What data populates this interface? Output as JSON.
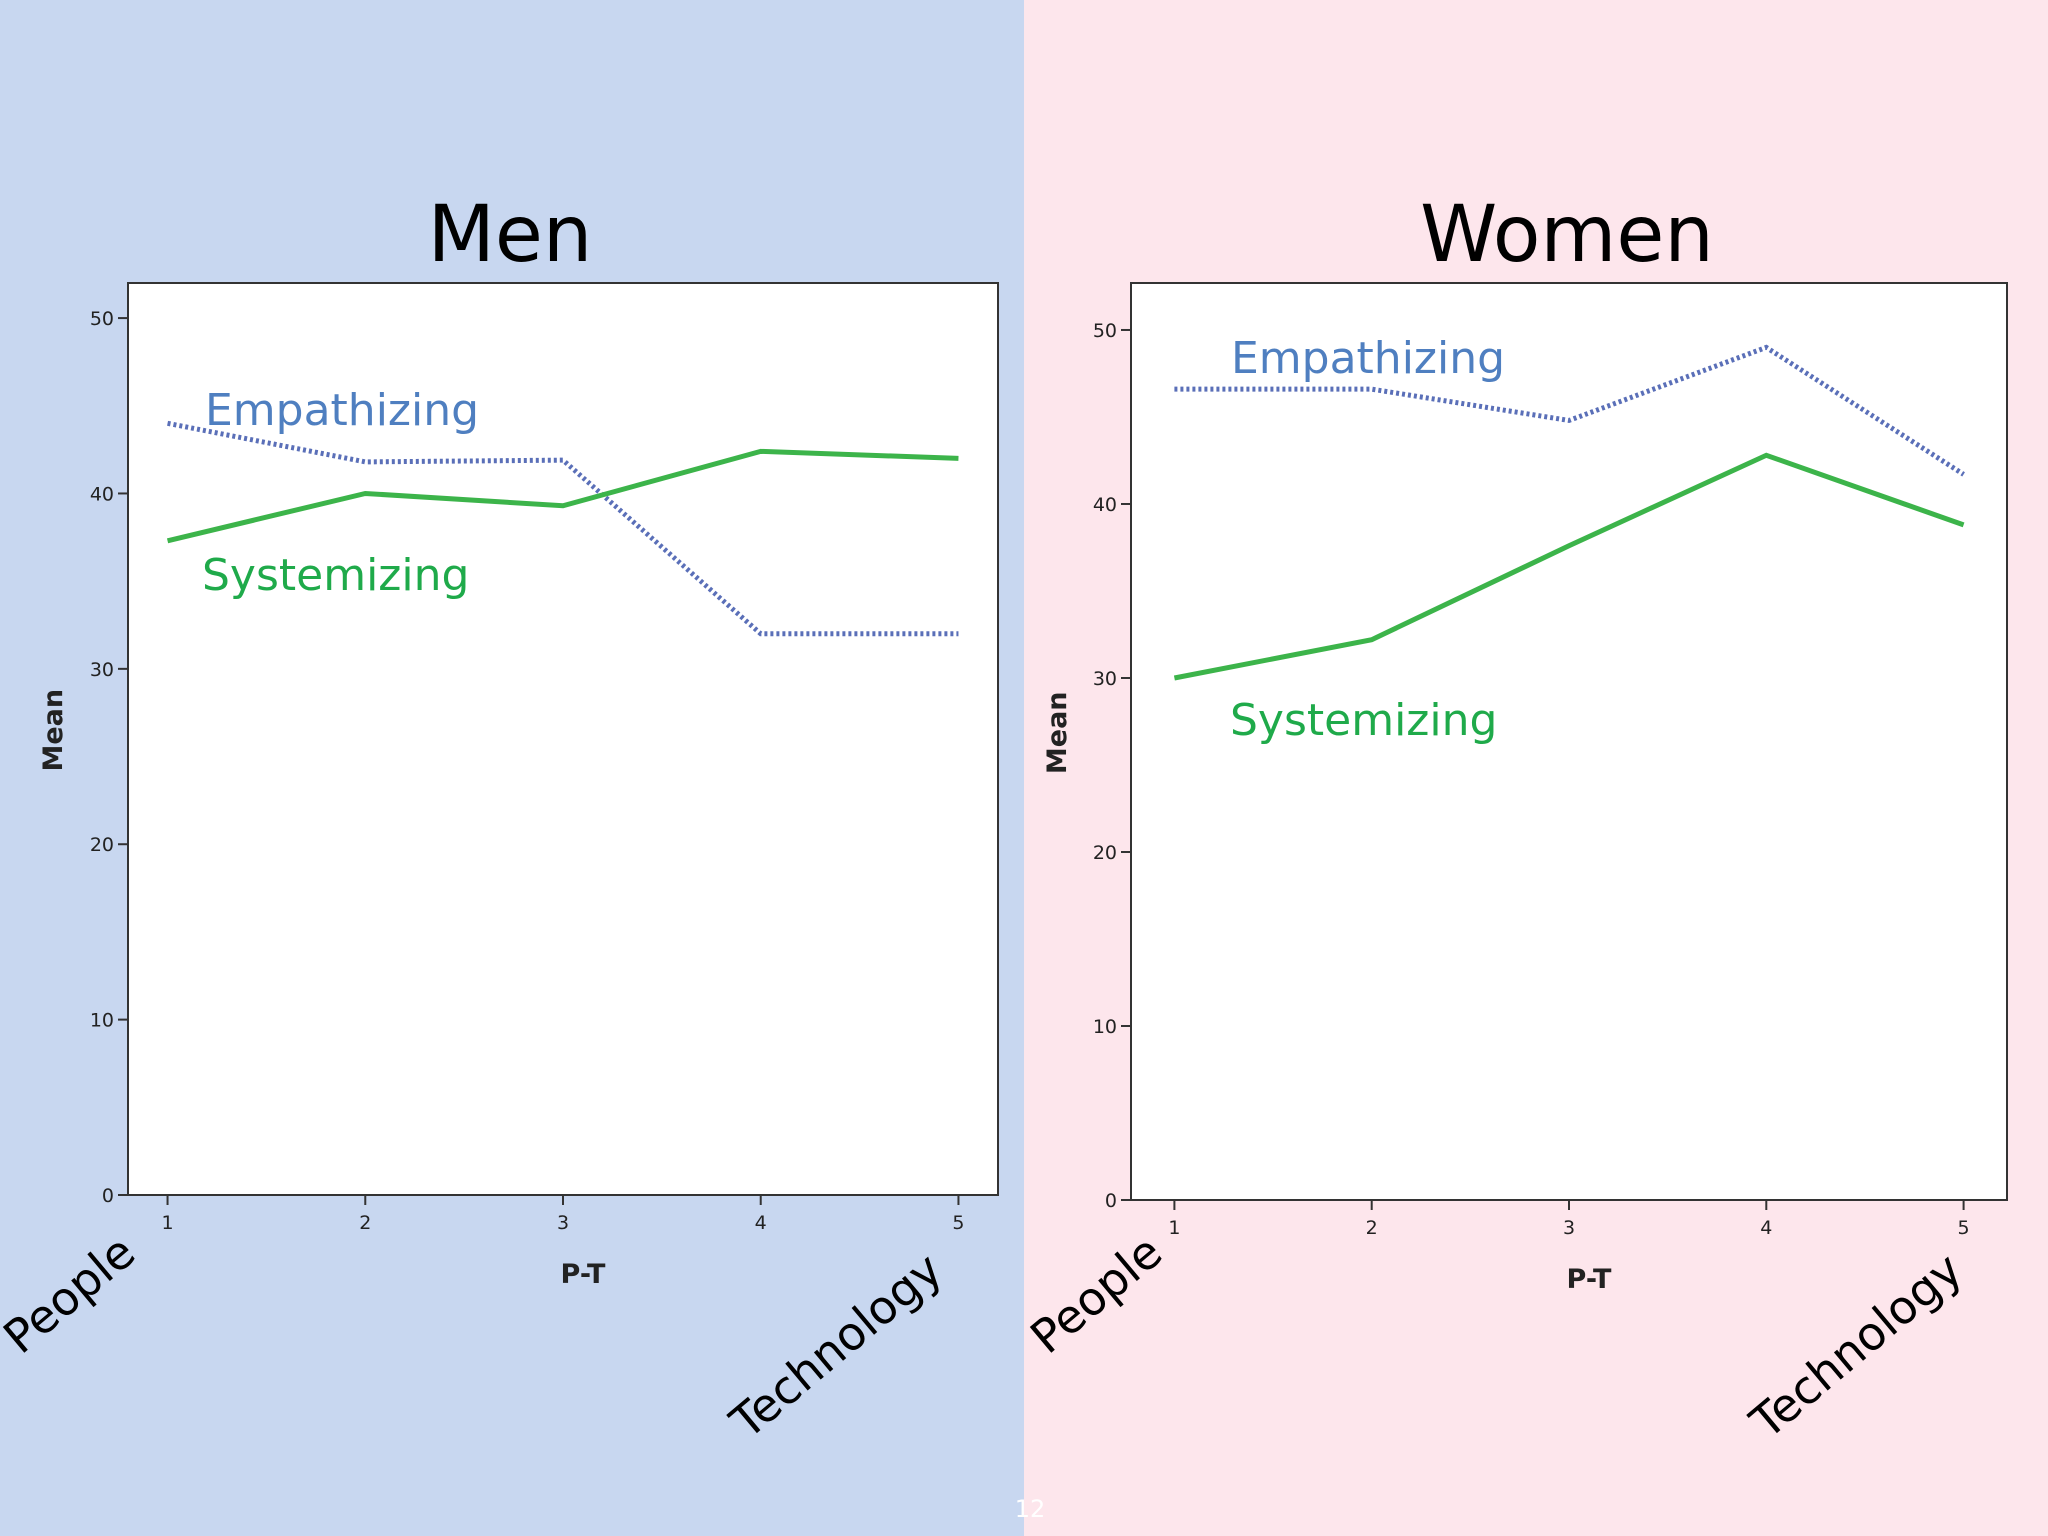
{
  "slide": {
    "page_number": "12"
  },
  "colors": {
    "men_background": "#c8d7f0",
    "women_background": "#fde6ec",
    "empathizing_line": "#5a6fb8",
    "systemizing_line": "#3cb44a",
    "empathizing_label": "#4f7fc0",
    "systemizing_label": "#1faa4a"
  },
  "chart_data": [
    {
      "type": "line",
      "title": "Men",
      "xlabel": "P-T",
      "ylabel": "Mean",
      "x": [
        1,
        2,
        3,
        4,
        5
      ],
      "x_tick_labels": [
        "1",
        "2",
        "3",
        "4",
        "5"
      ],
      "y_tick_labels": [
        "0",
        "10",
        "20",
        "30",
        "40",
        "50"
      ],
      "ylim": [
        0,
        52
      ],
      "xlim": [
        0.8,
        5.2
      ],
      "grid": false,
      "category_labels": {
        "left": "People",
        "right": "Technology"
      },
      "series": [
        {
          "name": "Empathizing",
          "style": "dotted",
          "values": [
            44.0,
            41.8,
            41.9,
            32.0,
            32.0
          ]
        },
        {
          "name": "Systemizing",
          "style": "solid",
          "values": [
            37.3,
            40.0,
            39.3,
            42.4,
            42.0
          ]
        }
      ]
    },
    {
      "type": "line",
      "title": "Women",
      "xlabel": "P-T",
      "ylabel": "Mean",
      "x": [
        1,
        2,
        3,
        4,
        5
      ],
      "x_tick_labels": [
        "1",
        "2",
        "3",
        "4",
        "5"
      ],
      "y_tick_labels": [
        "0",
        "10",
        "20",
        "30",
        "40",
        "50"
      ],
      "ylim": [
        0,
        52.7
      ],
      "xlim": [
        0.78,
        5.22
      ],
      "grid": false,
      "category_labels": {
        "left": "People",
        "right": "Technology"
      },
      "series": [
        {
          "name": "Empathizing",
          "style": "dotted",
          "values": [
            46.6,
            46.6,
            44.8,
            49.0,
            41.7
          ]
        },
        {
          "name": "Systemizing",
          "style": "solid",
          "values": [
            30.0,
            32.2,
            37.6,
            42.8,
            38.8
          ]
        }
      ]
    }
  ]
}
